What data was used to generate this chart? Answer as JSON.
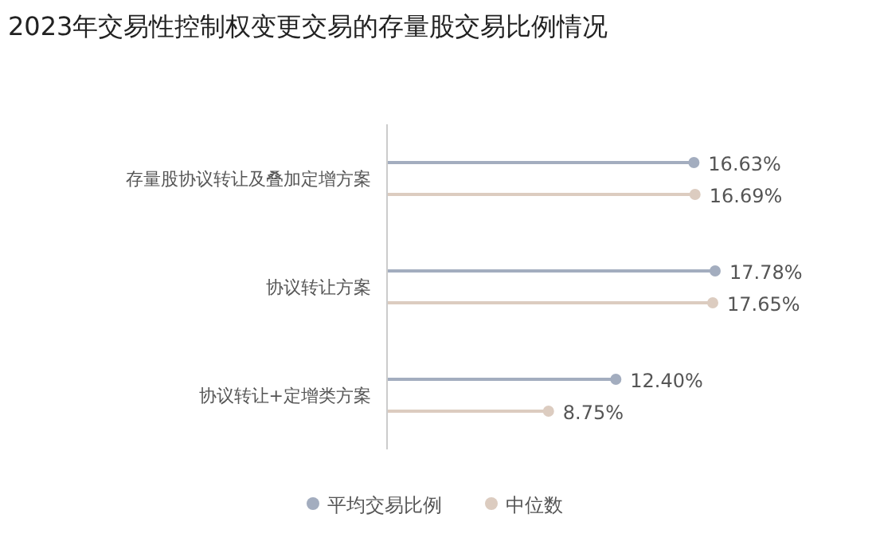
{
  "chart_data": {
    "type": "lollipop",
    "orientation": "horizontal",
    "title": "2023年交易性控制权变更交易的存量股交易比例情况",
    "categories": [
      "存量股协议转让及叠加定增方案",
      "协议转让方案",
      "协议转让+定增类方案"
    ],
    "series": [
      {
        "name": "平均交易比例",
        "color": "#a3adbf",
        "values": [
          16.63,
          17.78,
          12.4
        ],
        "value_labels": [
          "16.63%",
          "17.78%",
          "12.40%"
        ]
      },
      {
        "name": "中位数",
        "color": "#dcccc0",
        "values": [
          16.69,
          17.65,
          8.75
        ],
        "value_labels": [
          "16.69%",
          "17.65%",
          "8.75%"
        ]
      }
    ],
    "legend": "bottom",
    "grid": false,
    "marker": "circle"
  }
}
